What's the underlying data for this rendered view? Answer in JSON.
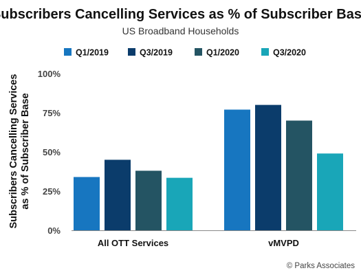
{
  "chart_data": {
    "type": "bar",
    "title": "Subscribers Cancelling Services as % of Subscriber Base",
    "subtitle": "US Broadband Households",
    "ylabel_lines": [
      "Subscribers Cancelling Services",
      "as % of Subscriber Base"
    ],
    "xlabel": "",
    "categories": [
      "All OTT Services",
      "vMVPD"
    ],
    "series": [
      {
        "name": "Q1/2019",
        "color": "#1776c0",
        "values": [
          34,
          77
        ]
      },
      {
        "name": "Q3/2019",
        "color": "#0b3c6b",
        "values": [
          45,
          80
        ]
      },
      {
        "name": "Q1/2020",
        "color": "#245463",
        "values": [
          38,
          70
        ]
      },
      {
        "name": "Q3/2020",
        "color": "#19a6b8",
        "values": [
          33.5,
          49
        ]
      }
    ],
    "ylim": [
      0,
      100
    ],
    "y_ticks": [
      0,
      25,
      50,
      75,
      100
    ],
    "y_tick_labels": [
      "0%",
      "25%",
      "50%",
      "75%",
      "100%"
    ],
    "grid": false,
    "legend_position": "top"
  },
  "credit": "© Parks Associates",
  "colors": {
    "axis": "#888888",
    "text": "#111111"
  }
}
